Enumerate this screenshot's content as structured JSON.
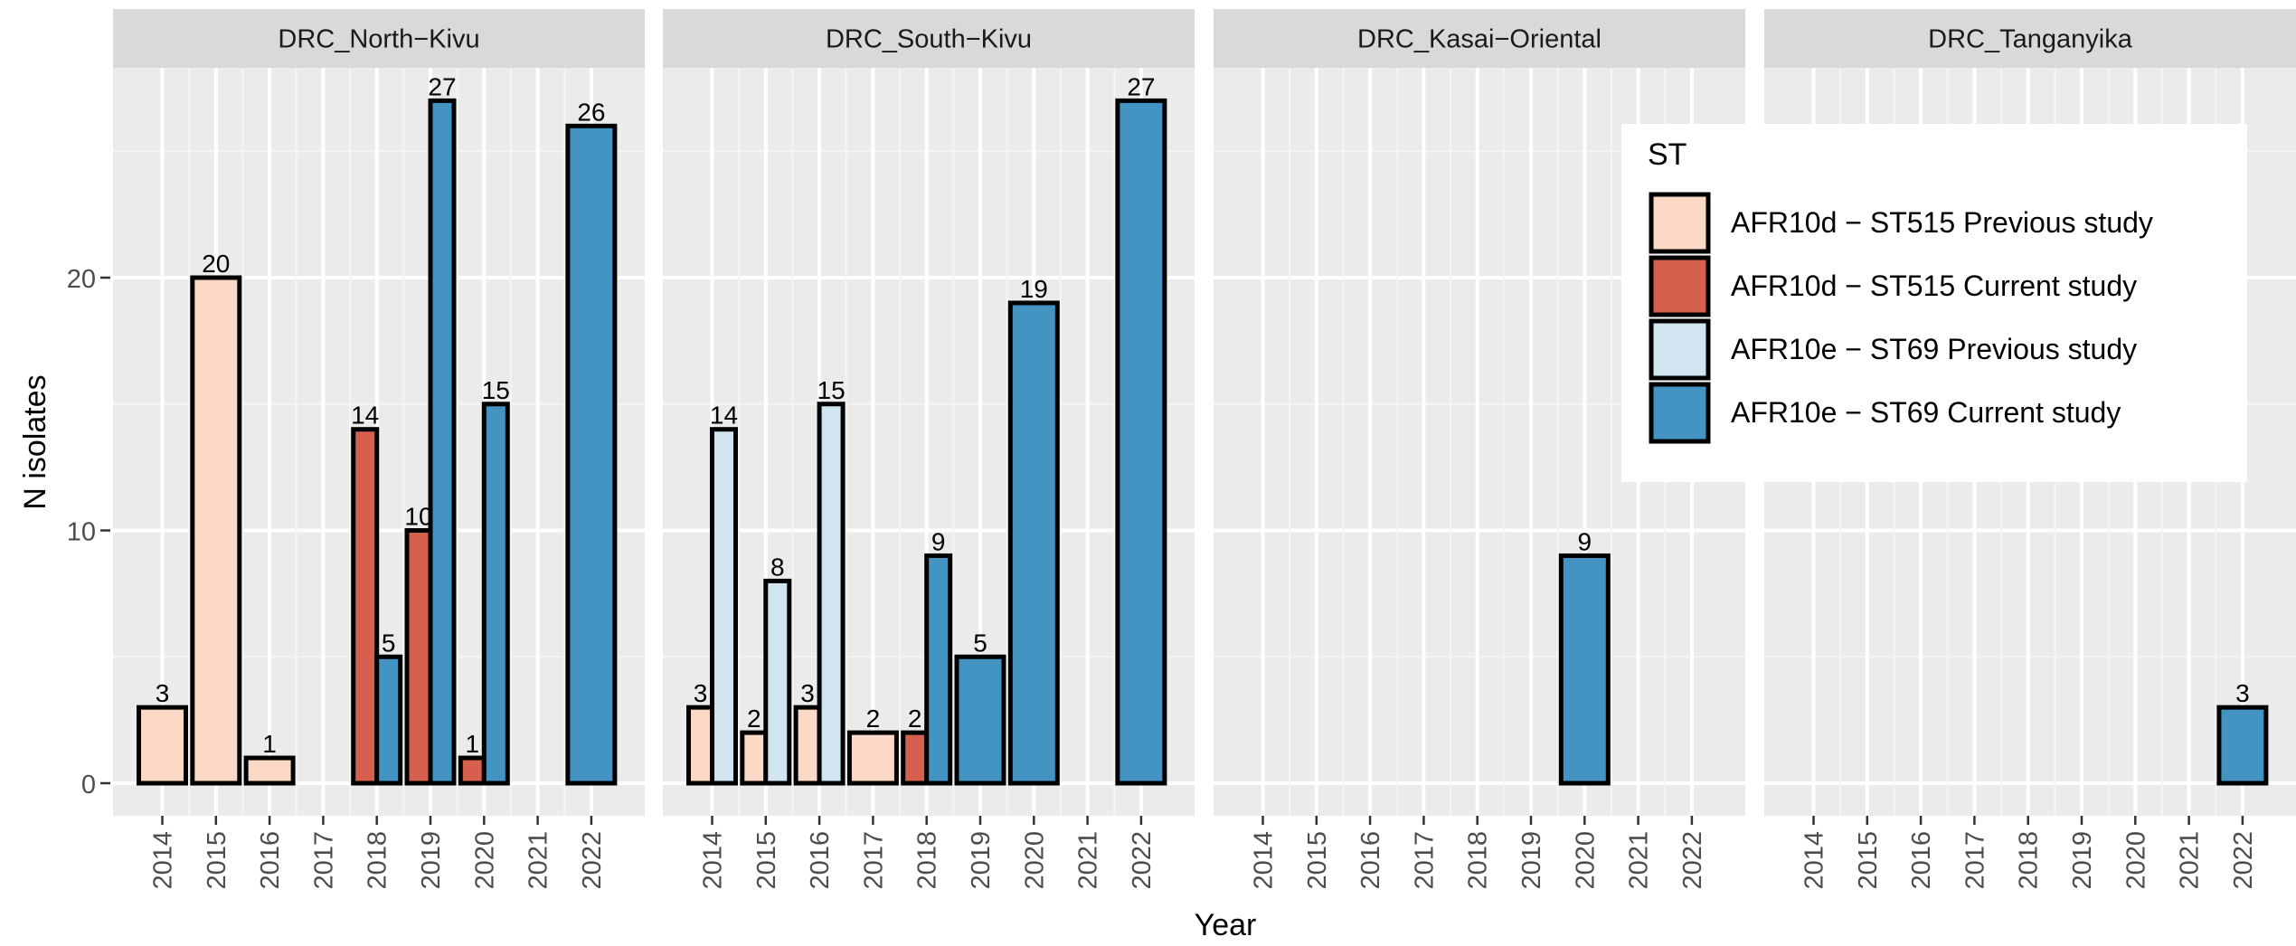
{
  "chart_data": {
    "type": "bar",
    "xlabel": "Year",
    "ylabel": "N isolates",
    "ylim": [
      0,
      28
    ],
    "y_ticks": [
      0,
      10,
      20
    ],
    "grid": true,
    "legend_position": "top-right",
    "years": [
      "2014",
      "2015",
      "2016",
      "2017",
      "2018",
      "2019",
      "2020",
      "2021",
      "2022"
    ],
    "legend": {
      "title": "ST",
      "entries": [
        {
          "key": "afr10d_prev",
          "label": "AFR10d − ST515  Previous study",
          "color": "#FCD9C6"
        },
        {
          "key": "afr10d_curr",
          "label": "AFR10d − ST515  Current study",
          "color": "#D6604D"
        },
        {
          "key": "afr10e_prev",
          "label": "AFR10e − ST69  Previous study",
          "color": "#D1E5F0"
        },
        {
          "key": "afr10e_curr",
          "label": "AFR10e − ST69  Current study",
          "color": "#4393C3"
        }
      ]
    },
    "panels": [
      {
        "name": "DRC_North−Kivu",
        "bars": [
          {
            "year": "2014",
            "series": "afr10d_prev",
            "value": 3
          },
          {
            "year": "2015",
            "series": "afr10d_prev",
            "value": 20
          },
          {
            "year": "2016",
            "series": "afr10d_prev",
            "value": 1
          },
          {
            "year": "2018",
            "series": "afr10d_curr",
            "value": 14
          },
          {
            "year": "2018",
            "series": "afr10e_curr",
            "value": 5
          },
          {
            "year": "2019",
            "series": "afr10d_curr",
            "value": 10
          },
          {
            "year": "2019",
            "series": "afr10e_curr",
            "value": 27
          },
          {
            "year": "2020",
            "series": "afr10d_curr",
            "value": 1
          },
          {
            "year": "2020",
            "series": "afr10e_curr",
            "value": 15
          },
          {
            "year": "2022",
            "series": "afr10e_curr",
            "value": 26
          }
        ]
      },
      {
        "name": "DRC_South−Kivu",
        "bars": [
          {
            "year": "2014",
            "series": "afr10d_prev",
            "value": 3
          },
          {
            "year": "2014",
            "series": "afr10e_prev",
            "value": 14
          },
          {
            "year": "2015",
            "series": "afr10d_prev",
            "value": 2
          },
          {
            "year": "2015",
            "series": "afr10e_prev",
            "value": 8
          },
          {
            "year": "2016",
            "series": "afr10d_prev",
            "value": 3
          },
          {
            "year": "2016",
            "series": "afr10e_prev",
            "value": 15
          },
          {
            "year": "2017",
            "series": "afr10d_prev",
            "value": 2
          },
          {
            "year": "2018",
            "series": "afr10d_curr",
            "value": 2
          },
          {
            "year": "2018",
            "series": "afr10e_curr",
            "value": 9
          },
          {
            "year": "2019",
            "series": "afr10e_curr",
            "value": 5
          },
          {
            "year": "2020",
            "series": "afr10e_curr",
            "value": 19
          },
          {
            "year": "2022",
            "series": "afr10e_curr",
            "value": 27
          }
        ]
      },
      {
        "name": "DRC_Kasai−Oriental",
        "bars": [
          {
            "year": "2020",
            "series": "afr10e_curr",
            "value": 9
          }
        ]
      },
      {
        "name": "DRC_Tanganyika",
        "bars": [
          {
            "year": "2022",
            "series": "afr10e_curr",
            "value": 3
          }
        ]
      }
    ]
  }
}
